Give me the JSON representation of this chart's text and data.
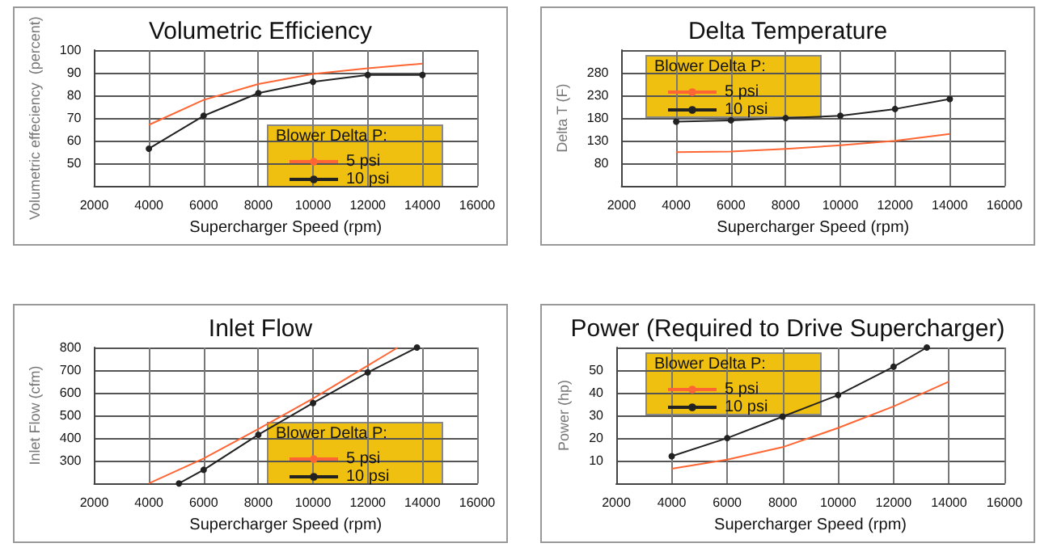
{
  "chart_data": [
    {
      "type": "line",
      "title": "Volumetric Efficiency",
      "xlabel": "Supercharger Speed (rpm)",
      "ylabel": "Volumetric effeciency  (percent)",
      "legend_title": "Blower Delta P:",
      "legend": "bottom right",
      "grid": true,
      "xlim": [
        2000,
        16000
      ],
      "xticks": [
        2000,
        4000,
        6000,
        8000,
        10000,
        12000,
        14000,
        16000
      ],
      "ylim": [
        40,
        100
      ],
      "yticks": [
        {
          "value": 40,
          "label": null
        },
        50,
        60,
        70,
        80,
        90,
        100
      ],
      "series": [
        {
          "name": "5 psi",
          "color": "#ff6633",
          "marker": "none",
          "x": [
            4000,
            6000,
            8000,
            10000,
            12000,
            14000
          ],
          "values": [
            67,
            78,
            85,
            89.5,
            92,
            94
          ]
        },
        {
          "name": "10 psi",
          "color": "#222222",
          "marker": "circle",
          "x": [
            4000,
            6000,
            8000,
            10000,
            12000,
            14000
          ],
          "values": [
            56.5,
            71,
            81,
            86,
            89,
            89
          ]
        }
      ]
    },
    {
      "type": "line",
      "title": "Delta Temperature",
      "xlabel": "Supercharger Speed (rpm)",
      "ylabel": "Delta T (F)",
      "legend_title": "Blower Delta P:",
      "legend": "top left",
      "grid": true,
      "xlim": [
        2000,
        16000
      ],
      "xticks": [
        2000,
        4000,
        6000,
        8000,
        10000,
        12000,
        14000,
        16000
      ],
      "ylim": [
        30,
        330
      ],
      "yticks": [
        {
          "value": 30,
          "label": null
        },
        80,
        130,
        180,
        230,
        280,
        {
          "value": 330,
          "label": null
        }
      ],
      "series": [
        {
          "name": "5 psi",
          "color": "#ff6633",
          "marker": "none",
          "x": [
            4000,
            6000,
            8000,
            10000,
            12000,
            14000
          ],
          "values": [
            105,
            106,
            112,
            120,
            130,
            145
          ]
        },
        {
          "name": "10 psi",
          "color": "#222222",
          "marker": "circle",
          "x": [
            4000,
            6000,
            8000,
            10000,
            12000,
            14000
          ],
          "values": [
            172,
            175,
            180,
            185,
            200,
            222
          ]
        }
      ]
    },
    {
      "type": "line",
      "title": "Inlet Flow",
      "xlabel": "Supercharger Speed (rpm)",
      "ylabel": "Inlet Flow (cfm)",
      "legend_title": "Blower Delta P:",
      "legend": "bottom right",
      "grid": true,
      "xlim": [
        2000,
        16000
      ],
      "xticks": [
        2000,
        4000,
        6000,
        8000,
        10000,
        12000,
        14000,
        16000
      ],
      "ylim": [
        200,
        800
      ],
      "yticks": [
        {
          "value": 200,
          "label": null
        },
        300,
        400,
        500,
        600,
        700,
        800
      ],
      "series": [
        {
          "name": "5 psi",
          "color": "#ff6633",
          "marker": "none",
          "x": [
            4000,
            6000,
            8000,
            10000,
            12000,
            13100
          ],
          "values": [
            200,
            310,
            440,
            575,
            720,
            800
          ]
        },
        {
          "name": "10 psi",
          "color": "#222222",
          "marker": "circle",
          "x": [
            5100,
            6000,
            8000,
            10000,
            12000,
            13800
          ],
          "values": [
            200,
            260,
            415,
            555,
            690,
            800
          ]
        }
      ]
    },
    {
      "type": "line",
      "title": "Power (Required to Drive Supercharger)",
      "xlabel": "Supercharger Speed (rpm)",
      "ylabel": "Power (hp)",
      "legend_title": "Blower Delta P:",
      "legend": "top left",
      "grid": true,
      "xlim": [
        2000,
        16000
      ],
      "xticks": [
        2000,
        4000,
        6000,
        8000,
        10000,
        12000,
        14000,
        16000
      ],
      "ylim": [
        0,
        60
      ],
      "yticks": [
        {
          "value": 0,
          "label": null
        },
        10,
        20,
        30,
        40,
        50,
        {
          "value": 60,
          "label": null
        }
      ],
      "series": [
        {
          "name": "5 psi",
          "color": "#ff6633",
          "marker": "none",
          "x": [
            4000,
            6000,
            8000,
            10000,
            12000,
            14000
          ],
          "values": [
            6.5,
            10.5,
            16,
            24.5,
            34,
            45
          ]
        },
        {
          "name": "10 psi",
          "color": "#222222",
          "marker": "circle",
          "x": [
            4000,
            6000,
            8000,
            10000,
            12000,
            13200
          ],
          "values": [
            12,
            20,
            29.5,
            39,
            51.5,
            60
          ]
        }
      ]
    }
  ]
}
